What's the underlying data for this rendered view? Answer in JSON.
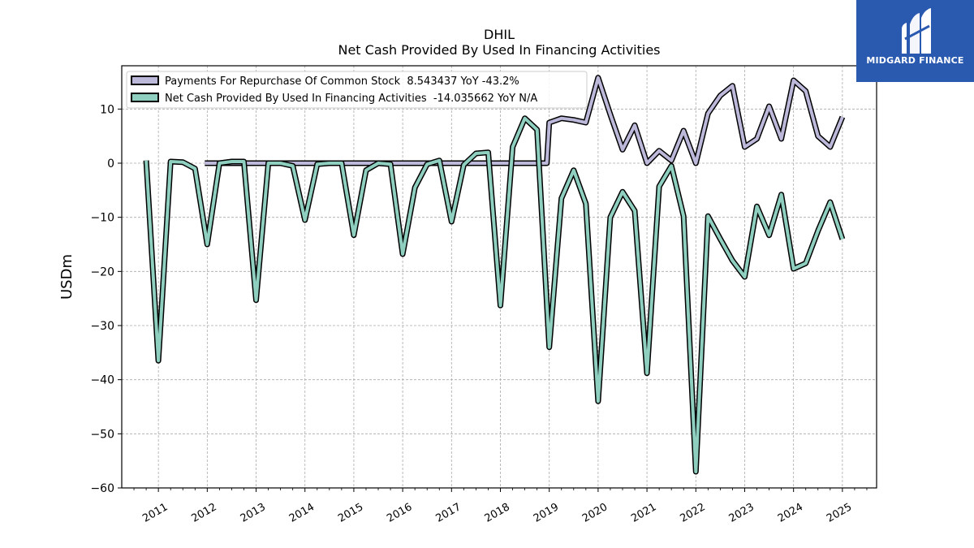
{
  "chart_data": {
    "type": "line",
    "title": "DHIL",
    "subtitle": "Net Cash Provided By Used In Financing Activities",
    "ylabel": "USDm",
    "xlabel": "",
    "ylim": [
      -60,
      18
    ],
    "yticks": [
      10,
      0,
      -10,
      -20,
      -30,
      -40,
      -50,
      -60
    ],
    "ytick_labels": [
      "10",
      "0",
      "−10",
      "−20",
      "−30",
      "−40",
      "−50",
      "−60"
    ],
    "xlim": [
      2010.25,
      2025.7
    ],
    "xticks": [
      2011,
      2012,
      2013,
      2014,
      2015,
      2016,
      2017,
      2018,
      2019,
      2020,
      2021,
      2022,
      2023,
      2024,
      2025
    ],
    "xtick_labels": [
      "2011",
      "2012",
      "2013",
      "2014",
      "2015",
      "2016",
      "2017",
      "2018",
      "2019",
      "2020",
      "2021",
      "2022",
      "2023",
      "2024",
      "2025"
    ],
    "grid": true,
    "legend_position": "top-left",
    "series": [
      {
        "name": "Payments For Repurchase Of Common Stock  8.543437 YoY -43.2%",
        "color": "#bcb8da",
        "x": [
          2011.95,
          2012.2,
          2012.45,
          2012.7,
          2012.95,
          2013.2,
          2013.45,
          2013.7,
          2013.95,
          2014.2,
          2014.45,
          2014.7,
          2014.95,
          2015.2,
          2015.45,
          2015.7,
          2015.95,
          2016.2,
          2016.45,
          2016.7,
          2016.95,
          2017.2,
          2017.45,
          2017.7,
          2017.95,
          2018.2,
          2018.45,
          2018.7,
          2018.95,
          2019.0,
          2019.25,
          2019.5,
          2019.75,
          2020.0,
          2020.25,
          2020.5,
          2020.75,
          2021.0,
          2021.25,
          2021.5,
          2021.75,
          2022.0,
          2022.25,
          2022.5,
          2022.75,
          2023.0,
          2023.25,
          2023.5,
          2023.75,
          2024.0,
          2024.25,
          2024.5,
          2024.75,
          2025.0
        ],
        "values": [
          0,
          0,
          0,
          0,
          0,
          0,
          0,
          0,
          0,
          0,
          0,
          0,
          0,
          0,
          0,
          0,
          0,
          0,
          0,
          0,
          0,
          0,
          0,
          0,
          0,
          0,
          0,
          0,
          0,
          7.5,
          8.3,
          8.0,
          7.5,
          15.8,
          9.0,
          2.5,
          7.0,
          0,
          2.3,
          0.5,
          6.0,
          0,
          9.2,
          12.5,
          14.3,
          3.0,
          4.5,
          10.5,
          4.5,
          15.3,
          13.3,
          5.0,
          3.0,
          8.54
        ]
      },
      {
        "name": "Net Cash Provided By Used In Financing Activities  -14.035662 YoY N/A",
        "color": "#8ecfc0",
        "x": [
          2010.75,
          2011.0,
          2011.25,
          2011.5,
          2011.75,
          2012.0,
          2012.25,
          2012.5,
          2012.75,
          2013.0,
          2013.25,
          2013.5,
          2013.75,
          2014.0,
          2014.25,
          2014.5,
          2014.75,
          2015.0,
          2015.25,
          2015.5,
          2015.75,
          2016.0,
          2016.25,
          2016.5,
          2016.75,
          2017.0,
          2017.25,
          2017.5,
          2017.75,
          2018.0,
          2018.25,
          2018.5,
          2018.75,
          2019.0,
          2019.25,
          2019.5,
          2019.75,
          2020.0,
          2020.25,
          2020.5,
          2020.75,
          2021.0,
          2021.25,
          2021.5,
          2021.75,
          2022.0,
          2022.25,
          2022.5,
          2022.75,
          2023.0,
          2023.25,
          2023.5,
          2023.75,
          2024.0,
          2024.25,
          2024.5,
          2024.75,
          2025.0
        ],
        "values": [
          0.5,
          -36.5,
          0.3,
          0.2,
          -1.0,
          -15.0,
          0,
          0.3,
          0.3,
          -25.3,
          0,
          0,
          -0.5,
          -10.5,
          -0.2,
          0,
          0,
          -13.3,
          -1.3,
          0,
          -0.2,
          -16.8,
          -4.5,
          -0.2,
          0.5,
          -10.8,
          -0.3,
          1.8,
          2.0,
          -26.3,
          3.0,
          8.3,
          6.2,
          -34.0,
          -6.5,
          -1.3,
          -7.5,
          -44.0,
          -10.0,
          -5.3,
          -8.8,
          -38.8,
          -4.3,
          -0.5,
          -9.8,
          -57.0,
          -9.8,
          -14.0,
          -18.0,
          -21.0,
          -8.0,
          -13.3,
          -5.8,
          -19.5,
          -18.5,
          -12.5,
          -7.2,
          -14.04
        ]
      }
    ]
  },
  "logo": {
    "text": "MIDGARD FINANCE",
    "icon": "midgard-logo-icon",
    "color": "#2a59b0"
  }
}
